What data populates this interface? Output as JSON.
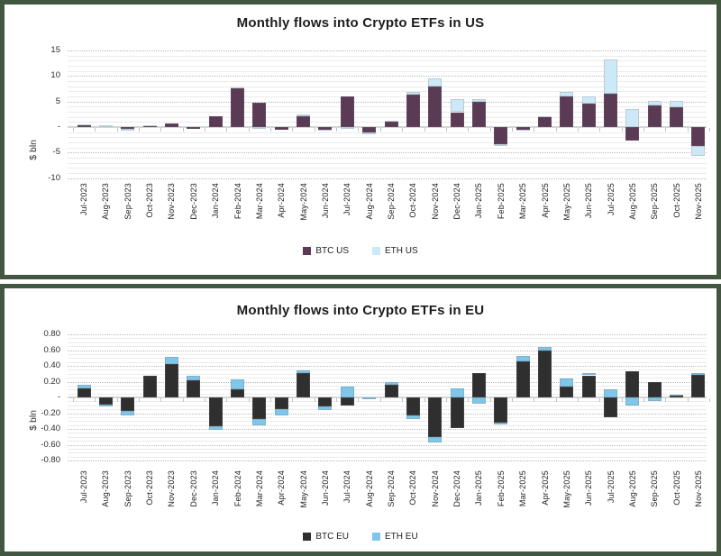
{
  "charts": [
    {
      "title": "Monthly flows into Crypto ETFs in US",
      "y_axis_label": "$ bln",
      "y_ticks": [
        "15",
        "10",
        "5",
        "-",
        "-5",
        "-10"
      ],
      "legend": [
        {
          "label": "BTC US",
          "color": "#5a3a55"
        },
        {
          "label": "ETH US",
          "color": "#cde9f7"
        }
      ],
      "chart_data": {
        "type": "bar",
        "stacked": true,
        "title": "Monthly flows into Crypto ETFs in US",
        "ylabel": "$ bln",
        "ylim": [
          -10,
          15
        ],
        "grid": true,
        "legend_position": "bottom",
        "categories": [
          "Jul-2023",
          "Aug-2023",
          "Sep-2023",
          "Oct-2023",
          "Nov-2023",
          "Dec-2023",
          "Jan-2024",
          "Feb-2024",
          "Mar-2024",
          "Apr-2024",
          "May-2024",
          "Jun-2024",
          "Jul-2024",
          "Aug-2024",
          "Sep-2024",
          "Oct-2024",
          "Nov-2024",
          "Dec-2024",
          "Jan-2025",
          "Feb-2025",
          "Mar-2025",
          "Apr-2025",
          "May-2025",
          "Jun-2025",
          "Jul-2025",
          "Aug-2025",
          "Sep-2025",
          "Oct-2025",
          "Nov-2025"
        ],
        "series": [
          {
            "name": "BTC US",
            "values": [
              0.4,
              0.0,
              -0.4,
              0.1,
              0.7,
              -0.4,
              2.2,
              7.5,
              4.8,
              -0.6,
              2.1,
              -0.5,
              6.0,
              -1.0,
              1.1,
              6.4,
              7.9,
              2.9,
              4.9,
              -3.3,
              -0.5,
              2.1,
              6.0,
              4.5,
              6.5,
              -2.7,
              4.3,
              3.9,
              -3.7
            ]
          },
          {
            "name": "ETH US",
            "values": [
              0.1,
              0.3,
              -0.3,
              0.25,
              0.0,
              0.0,
              0.0,
              0.3,
              -0.4,
              0.0,
              0.4,
              -0.3,
              -0.4,
              -0.4,
              0.2,
              0.4,
              1.6,
              2.5,
              0.5,
              -0.5,
              -0.3,
              0.1,
              0.8,
              1.5,
              6.8,
              3.5,
              0.8,
              1.3,
              -1.9
            ]
          }
        ]
      }
    },
    {
      "title": "Monthly flows into Crypto ETFs in EU",
      "y_axis_label": "$ bln",
      "y_ticks": [
        "0.80",
        "0.60",
        "0.40",
        "0.20",
        "-",
        "-0.20",
        "-0.40",
        "-0.60",
        "-0.80"
      ],
      "legend": [
        {
          "label": "BTC EU",
          "color": "#2f2f2f"
        },
        {
          "label": "ETH EU",
          "color": "#7fc6e8"
        }
      ],
      "chart_data": {
        "type": "bar",
        "stacked": true,
        "title": "Monthly flows into Crypto ETFs in EU",
        "ylabel": "$ bln",
        "ylim": [
          -0.8,
          0.8
        ],
        "grid": true,
        "legend_position": "bottom",
        "categories": [
          "Jul-2023",
          "Aug-2023",
          "Sep-2023",
          "Oct-2023",
          "Nov-2023",
          "Dec-2023",
          "Jan-2024",
          "Feb-2024",
          "Mar-2024",
          "Apr-2024",
          "May-2024",
          "Jun-2024",
          "Jul-2024",
          "Aug-2024",
          "Sep-2024",
          "Oct-2024",
          "Nov-2024",
          "Dec-2024",
          "Jan-2025",
          "Feb-2025",
          "Mar-2025",
          "Apr-2025",
          "May-2025",
          "Jun-2025",
          "Jul-2025",
          "Aug-2025",
          "Sep-2025",
          "Oct-2025",
          "Nov-2025"
        ],
        "series": [
          {
            "name": "BTC EU",
            "values": [
              0.12,
              -0.09,
              -0.17,
              0.28,
              0.42,
              0.22,
              -0.36,
              0.1,
              -0.27,
              -0.15,
              0.31,
              -0.11,
              -0.1,
              0.0,
              0.16,
              -0.23,
              -0.5,
              -0.39,
              0.31,
              -0.32,
              0.46,
              0.6,
              0.14,
              0.28,
              -0.25,
              0.33,
              0.2,
              0.02,
              0.29
            ]
          },
          {
            "name": "ETH EU",
            "values": [
              0.04,
              -0.03,
              -0.06,
              0.0,
              0.1,
              0.06,
              -0.05,
              0.13,
              -0.09,
              -0.08,
              0.03,
              -0.05,
              0.14,
              -0.02,
              0.03,
              -0.05,
              -0.07,
              0.11,
              -0.08,
              -0.02,
              0.07,
              0.04,
              0.1,
              0.03,
              0.1,
              -0.1,
              -0.04,
              0.01,
              0.02
            ]
          }
        ]
      }
    }
  ]
}
